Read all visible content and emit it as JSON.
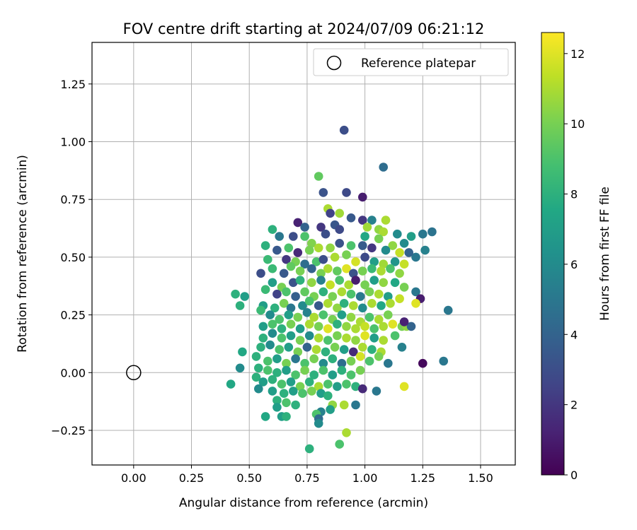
{
  "chart_data": {
    "type": "scatter",
    "title": "FOV centre drift starting at 2024/07/09 06:21:12",
    "xlabel": "Angular distance from reference (arcmin)",
    "ylabel": "Rotation from reference (arcmin)",
    "xlim": [
      -0.18,
      1.65
    ],
    "ylim": [
      -0.4,
      1.43
    ],
    "xticks": [
      0.0,
      0.25,
      0.5,
      0.75,
      1.0,
      1.25,
      1.5
    ],
    "xtick_labels": [
      "0.00",
      "0.25",
      "0.50",
      "0.75",
      "1.00",
      "1.25",
      "1.50"
    ],
    "yticks": [
      -0.25,
      0.0,
      0.25,
      0.5,
      0.75,
      1.0,
      1.25
    ],
    "ytick_labels": [
      "−0.25",
      "0.00",
      "0.25",
      "0.50",
      "0.75",
      "1.00",
      "1.25"
    ],
    "grid": true,
    "legend_placement": "top-right",
    "legend": [
      {
        "label": "Reference platepar",
        "marker": "open-circle"
      }
    ],
    "reference_point": {
      "x": 0.0,
      "y": 0.0
    },
    "colorbar": {
      "label": "Hours from first FF file",
      "colormap": "viridis",
      "range": [
        0,
        12.6
      ],
      "ticks": [
        0,
        2,
        4,
        6,
        8,
        10,
        12
      ],
      "tick_labels": [
        "0",
        "2",
        "4",
        "6",
        "8",
        "10",
        "12"
      ]
    },
    "points": [
      [
        0.91,
        1.05,
        3
      ],
      [
        1.08,
        0.89,
        4.5
      ],
      [
        0.8,
        0.85,
        9.5
      ],
      [
        0.82,
        0.78,
        3.2
      ],
      [
        0.92,
        0.78,
        2.8
      ],
      [
        0.99,
        0.76,
        1
      ],
      [
        0.84,
        0.71,
        11
      ],
      [
        0.85,
        0.69,
        2.5
      ],
      [
        0.89,
        0.69,
        10.8
      ],
      [
        0.94,
        0.67,
        3.5
      ],
      [
        0.99,
        0.66,
        2
      ],
      [
        1.03,
        0.66,
        5.5
      ],
      [
        1.09,
        0.66,
        11
      ],
      [
        1.06,
        0.62,
        10.5
      ],
      [
        0.71,
        0.65,
        1.2
      ],
      [
        0.74,
        0.63,
        4
      ],
      [
        0.81,
        0.63,
        2
      ],
      [
        0.87,
        0.64,
        3.4
      ],
      [
        1.01,
        0.63,
        10.8
      ],
      [
        1.08,
        0.61,
        11
      ],
      [
        1.14,
        0.6,
        6
      ],
      [
        1.2,
        0.59,
        7
      ],
      [
        1.25,
        0.6,
        5
      ],
      [
        1.29,
        0.61,
        4.8
      ],
      [
        0.6,
        0.62,
        8
      ],
      [
        0.63,
        0.59,
        5
      ],
      [
        0.69,
        0.59,
        3
      ],
      [
        0.74,
        0.59,
        9
      ],
      [
        0.77,
        0.56,
        10.2
      ],
      [
        0.83,
        0.6,
        3
      ],
      [
        0.89,
        0.62,
        2.8
      ],
      [
        1.0,
        0.59,
        7.5
      ],
      [
        1.06,
        0.58,
        10
      ],
      [
        1.12,
        0.55,
        10.5
      ],
      [
        1.17,
        0.56,
        6
      ],
      [
        1.26,
        0.53,
        5.5
      ],
      [
        1.22,
        0.5,
        5
      ],
      [
        0.57,
        0.55,
        8
      ],
      [
        0.62,
        0.53,
        3.5
      ],
      [
        0.67,
        0.54,
        9
      ],
      [
        0.71,
        0.52,
        1.5
      ],
      [
        0.76,
        0.53,
        10
      ],
      [
        0.8,
        0.54,
        11
      ],
      [
        0.85,
        0.54,
        10.5
      ],
      [
        0.89,
        0.56,
        3.2
      ],
      [
        0.94,
        0.55,
        9
      ],
      [
        0.99,
        0.55,
        3.6
      ],
      [
        1.03,
        0.54,
        2
      ],
      [
        1.09,
        0.53,
        6
      ],
      [
        1.15,
        0.52,
        11.5
      ],
      [
        1.19,
        0.52,
        4
      ],
      [
        0.58,
        0.49,
        8.5
      ],
      [
        0.66,
        0.49,
        2
      ],
      [
        0.7,
        0.48,
        10
      ],
      [
        0.74,
        0.47,
        4.5
      ],
      [
        0.79,
        0.48,
        9
      ],
      [
        0.82,
        0.49,
        3
      ],
      [
        0.87,
        0.5,
        11
      ],
      [
        0.92,
        0.51,
        10
      ],
      [
        0.96,
        0.48,
        11.8
      ],
      [
        1.0,
        0.5,
        2.8
      ],
      [
        1.04,
        0.48,
        7
      ],
      [
        1.08,
        0.47,
        10.8
      ],
      [
        1.13,
        0.48,
        6.5
      ],
      [
        1.17,
        0.47,
        11.5
      ],
      [
        0.55,
        0.43,
        3
      ],
      [
        0.6,
        0.45,
        8.5
      ],
      [
        0.65,
        0.43,
        3.5
      ],
      [
        0.68,
        0.46,
        9.5
      ],
      [
        0.72,
        0.44,
        10
      ],
      [
        0.77,
        0.45,
        4
      ],
      [
        0.81,
        0.43,
        10
      ],
      [
        0.84,
        0.45,
        11
      ],
      [
        0.88,
        0.44,
        9.5
      ],
      [
        0.92,
        0.45,
        12
      ],
      [
        0.95,
        0.43,
        3.2
      ],
      [
        0.99,
        0.44,
        10
      ],
      [
        1.03,
        0.45,
        8.5
      ],
      [
        1.07,
        0.44,
        11
      ],
      [
        1.11,
        0.45,
        9
      ],
      [
        1.15,
        0.43,
        10.5
      ],
      [
        0.6,
        0.39,
        7
      ],
      [
        0.64,
        0.37,
        10
      ],
      [
        0.69,
        0.39,
        3.2
      ],
      [
        0.72,
        0.4,
        8
      ],
      [
        0.77,
        0.39,
        10.5
      ],
      [
        0.81,
        0.4,
        5.5
      ],
      [
        0.85,
        0.38,
        11.5
      ],
      [
        0.89,
        0.4,
        9
      ],
      [
        0.93,
        0.38,
        11
      ],
      [
        0.96,
        0.4,
        1
      ],
      [
        1.0,
        0.38,
        10
      ],
      [
        1.04,
        0.4,
        7
      ],
      [
        1.08,
        0.39,
        10.5
      ],
      [
        1.13,
        0.39,
        7.5
      ],
      [
        1.17,
        0.37,
        10
      ],
      [
        0.44,
        0.34,
        8
      ],
      [
        0.48,
        0.33,
        7
      ],
      [
        0.57,
        0.36,
        8.5
      ],
      [
        0.62,
        0.34,
        2.5
      ],
      [
        0.66,
        0.35,
        9
      ],
      [
        0.7,
        0.33,
        3.8
      ],
      [
        0.74,
        0.35,
        9.5
      ],
      [
        0.78,
        0.33,
        10
      ],
      [
        0.82,
        0.35,
        8
      ],
      [
        0.86,
        0.33,
        10
      ],
      [
        0.9,
        0.35,
        11
      ],
      [
        0.94,
        0.34,
        9
      ],
      [
        0.98,
        0.33,
        5
      ],
      [
        1.02,
        0.35,
        10
      ],
      [
        1.06,
        0.34,
        11
      ],
      [
        1.1,
        0.33,
        7
      ],
      [
        1.15,
        0.32,
        11.5
      ],
      [
        1.22,
        0.35,
        5
      ],
      [
        1.24,
        0.32,
        1
      ],
      [
        0.46,
        0.29,
        8
      ],
      [
        0.56,
        0.29,
        7
      ],
      [
        0.61,
        0.28,
        8
      ],
      [
        0.65,
        0.3,
        10
      ],
      [
        0.68,
        0.28,
        5
      ],
      [
        0.73,
        0.29,
        6
      ],
      [
        0.76,
        0.31,
        9
      ],
      [
        0.8,
        0.29,
        3.5
      ],
      [
        0.84,
        0.3,
        11
      ],
      [
        0.88,
        0.28,
        10.5
      ],
      [
        0.91,
        0.3,
        8
      ],
      [
        0.95,
        0.29,
        11
      ],
      [
        0.99,
        0.28,
        6
      ],
      [
        1.03,
        0.3,
        11
      ],
      [
        1.07,
        0.29,
        7.5
      ],
      [
        1.11,
        0.3,
        11
      ],
      [
        1.22,
        0.3,
        12
      ],
      [
        1.36,
        0.27,
        5
      ],
      [
        0.55,
        0.27,
        8.5
      ],
      [
        0.59,
        0.25,
        6
      ],
      [
        0.63,
        0.23,
        9
      ],
      [
        0.67,
        0.25,
        7
      ],
      [
        0.71,
        0.24,
        10
      ],
      [
        0.75,
        0.26,
        5.5
      ],
      [
        0.78,
        0.24,
        11
      ],
      [
        0.82,
        0.25,
        9
      ],
      [
        0.86,
        0.23,
        10
      ],
      [
        0.9,
        0.25,
        7
      ],
      [
        0.94,
        0.24,
        10.5
      ],
      [
        0.98,
        0.22,
        11
      ],
      [
        1.02,
        0.24,
        9
      ],
      [
        1.06,
        0.23,
        11
      ],
      [
        1.1,
        0.25,
        10
      ],
      [
        0.56,
        0.2,
        7
      ],
      [
        0.6,
        0.21,
        9
      ],
      [
        0.64,
        0.19,
        8
      ],
      [
        0.68,
        0.21,
        10
      ],
      [
        0.72,
        0.19,
        7
      ],
      [
        0.76,
        0.21,
        11
      ],
      [
        0.8,
        0.2,
        10
      ],
      [
        0.84,
        0.19,
        12
      ],
      [
        0.88,
        0.21,
        8
      ],
      [
        0.92,
        0.2,
        10.5
      ],
      [
        0.96,
        0.19,
        11
      ],
      [
        1.0,
        0.2,
        11.5
      ],
      [
        1.04,
        0.19,
        9
      ],
      [
        1.08,
        0.2,
        11
      ],
      [
        1.12,
        0.21,
        12
      ],
      [
        1.16,
        0.2,
        10
      ],
      [
        1.18,
        0.2,
        10.5
      ],
      [
        1.2,
        0.2,
        4
      ],
      [
        1.17,
        0.22,
        1.2
      ],
      [
        0.56,
        0.15,
        8
      ],
      [
        0.6,
        0.17,
        6
      ],
      [
        0.64,
        0.15,
        9
      ],
      [
        0.68,
        0.16,
        7
      ],
      [
        0.72,
        0.14,
        10
      ],
      [
        0.76,
        0.16,
        6
      ],
      [
        0.8,
        0.15,
        11
      ],
      [
        0.84,
        0.14,
        9
      ],
      [
        0.88,
        0.16,
        10
      ],
      [
        0.92,
        0.15,
        11
      ],
      [
        0.96,
        0.14,
        10.5
      ],
      [
        1.0,
        0.16,
        12
      ],
      [
        1.04,
        0.15,
        7
      ],
      [
        1.08,
        0.14,
        11
      ],
      [
        1.13,
        0.16,
        9
      ],
      [
        1.16,
        0.11,
        5.5
      ],
      [
        0.55,
        0.11,
        8
      ],
      [
        0.59,
        0.12,
        6
      ],
      [
        0.63,
        0.1,
        9
      ],
      [
        0.67,
        0.11,
        7
      ],
      [
        0.71,
        0.09,
        10
      ],
      [
        0.75,
        0.11,
        4
      ],
      [
        0.79,
        0.1,
        11
      ],
      [
        0.83,
        0.09,
        8
      ],
      [
        0.87,
        0.11,
        10
      ],
      [
        0.91,
        0.1,
        7
      ],
      [
        0.95,
        0.09,
        1.5
      ],
      [
        0.99,
        0.11,
        11
      ],
      [
        1.03,
        0.1,
        8
      ],
      [
        1.07,
        0.09,
        11
      ],
      [
        0.47,
        0.09,
        7.5
      ],
      [
        0.53,
        0.07,
        8
      ],
      [
        0.58,
        0.05,
        9
      ],
      [
        0.62,
        0.06,
        7
      ],
      [
        0.66,
        0.04,
        10
      ],
      [
        0.7,
        0.06,
        5
      ],
      [
        0.74,
        0.04,
        9
      ],
      [
        0.78,
        0.06,
        10
      ],
      [
        0.82,
        0.04,
        6
      ],
      [
        0.86,
        0.06,
        8
      ],
      [
        0.9,
        0.04,
        4.5
      ],
      [
        0.94,
        0.05,
        10
      ],
      [
        0.98,
        0.07,
        11.8
      ],
      [
        1.02,
        0.05,
        9
      ],
      [
        1.06,
        0.07,
        10
      ],
      [
        1.1,
        0.04,
        5
      ],
      [
        1.25,
        0.04,
        0.3
      ],
      [
        1.34,
        0.05,
        5
      ],
      [
        0.46,
        0.02,
        6
      ],
      [
        0.54,
        0.02,
        8
      ],
      [
        0.58,
        0.01,
        9
      ],
      [
        0.62,
        0.0,
        8
      ],
      [
        0.66,
        0.01,
        7
      ],
      [
        0.7,
        -0.01,
        9
      ],
      [
        0.74,
        0.01,
        10
      ],
      [
        0.78,
        -0.01,
        8
      ],
      [
        0.82,
        0.01,
        9
      ],
      [
        0.86,
        -0.01,
        7
      ],
      [
        0.9,
        0.01,
        8
      ],
      [
        0.94,
        -0.01,
        9
      ],
      [
        0.98,
        0.01,
        10
      ],
      [
        0.53,
        -0.02,
        8
      ],
      [
        0.56,
        -0.04,
        7
      ],
      [
        0.6,
        -0.03,
        8
      ],
      [
        0.64,
        -0.05,
        9
      ],
      [
        0.68,
        -0.04,
        7
      ],
      [
        0.72,
        -0.06,
        10
      ],
      [
        0.76,
        -0.04,
        8
      ],
      [
        0.8,
        -0.06,
        11
      ],
      [
        0.84,
        -0.05,
        9
      ],
      [
        0.88,
        -0.06,
        7
      ],
      [
        0.92,
        -0.05,
        9
      ],
      [
        0.96,
        -0.06,
        8
      ],
      [
        0.99,
        -0.07,
        1.5
      ],
      [
        1.05,
        -0.08,
        5
      ],
      [
        1.17,
        -0.06,
        12
      ],
      [
        0.42,
        -0.05,
        7.5
      ],
      [
        0.54,
        -0.07,
        6
      ],
      [
        0.6,
        -0.08,
        7
      ],
      [
        0.65,
        -0.09,
        8
      ],
      [
        0.69,
        -0.08,
        7
      ],
      [
        0.73,
        -0.09,
        9
      ],
      [
        0.77,
        -0.08,
        10
      ],
      [
        0.81,
        -0.09,
        7
      ],
      [
        0.84,
        -0.1,
        8
      ],
      [
        0.62,
        -0.12,
        8
      ],
      [
        0.66,
        -0.13,
        9
      ],
      [
        0.7,
        -0.14,
        8
      ],
      [
        0.86,
        -0.14,
        10.5
      ],
      [
        0.91,
        -0.14,
        11
      ],
      [
        0.96,
        -0.14,
        5
      ],
      [
        0.62,
        -0.15,
        7
      ],
      [
        0.81,
        -0.17,
        5.5
      ],
      [
        0.85,
        -0.16,
        7
      ],
      [
        0.57,
        -0.19,
        7.5
      ],
      [
        0.64,
        -0.19,
        7
      ],
      [
        0.66,
        -0.19,
        8
      ],
      [
        0.79,
        -0.18,
        9
      ],
      [
        0.8,
        -0.2,
        4.5
      ],
      [
        0.8,
        -0.22,
        6
      ],
      [
        0.92,
        -0.26,
        11
      ],
      [
        0.89,
        -0.31,
        9
      ],
      [
        0.76,
        -0.33,
        8
      ]
    ]
  }
}
